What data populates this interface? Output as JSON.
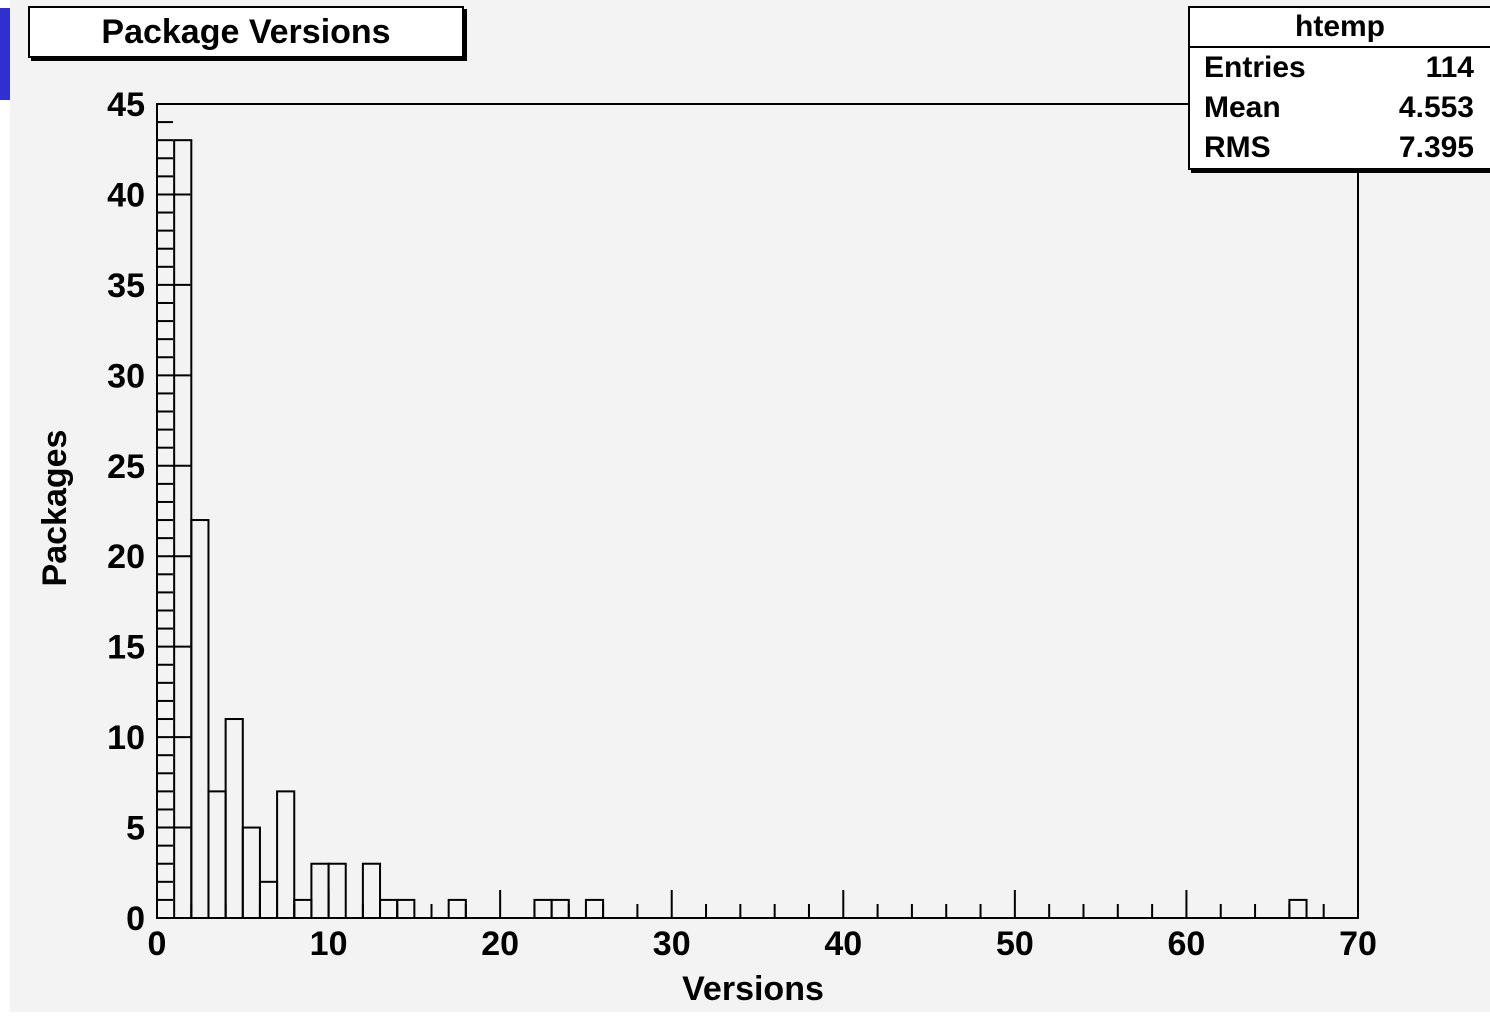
{
  "chart_data": {
    "type": "histogram",
    "title": "Package Versions",
    "xlabel": "Versions",
    "ylabel": "Packages",
    "xlim": [
      0,
      70
    ],
    "ylim": [
      0,
      45
    ],
    "bin_width": 1,
    "x_ticks": [
      "0",
      "10",
      "20",
      "30",
      "40",
      "50",
      "60",
      "70"
    ],
    "y_ticks": [
      "0",
      "5",
      "10",
      "15",
      "20",
      "25",
      "30",
      "35",
      "40",
      "45"
    ],
    "bins": [
      {
        "x": 1,
        "count": 43
      },
      {
        "x": 2,
        "count": 22
      },
      {
        "x": 3,
        "count": 7
      },
      {
        "x": 4,
        "count": 11
      },
      {
        "x": 5,
        "count": 5
      },
      {
        "x": 6,
        "count": 2
      },
      {
        "x": 7,
        "count": 7
      },
      {
        "x": 8,
        "count": 1
      },
      {
        "x": 9,
        "count": 3
      },
      {
        "x": 10,
        "count": 3
      },
      {
        "x": 12,
        "count": 3
      },
      {
        "x": 13,
        "count": 1
      },
      {
        "x": 14,
        "count": 1
      },
      {
        "x": 17,
        "count": 1
      },
      {
        "x": 22,
        "count": 1
      },
      {
        "x": 23,
        "count": 1
      },
      {
        "x": 25,
        "count": 1
      },
      {
        "x": 66,
        "count": 1
      }
    ],
    "stats": {
      "name": "htemp",
      "rows": [
        {
          "label": "Entries",
          "value": "114"
        },
        {
          "label": "Mean",
          "value": "4.553"
        },
        {
          "label": "RMS",
          "value": "7.395"
        }
      ]
    },
    "colors": {
      "canvas": "#f3f3f3",
      "line": "#000000",
      "backdrop_text": "#3030d0"
    }
  }
}
